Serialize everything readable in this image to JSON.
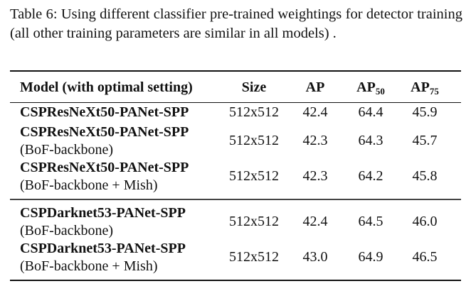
{
  "caption": "Table 6: Using different classifier pre-trained weightings for detector training (all other training parameters are similar in all models) .",
  "headers": {
    "model": "Model (with optimal setting)",
    "size": "Size",
    "ap": "AP",
    "ap50_base": "AP",
    "ap50_sub": "50",
    "ap75_base": "AP",
    "ap75_sub": "75"
  },
  "rows": [
    {
      "model": "CSPResNeXt50-PANet-SPP",
      "variant": "",
      "size": "512x512",
      "ap": "42.4",
      "ap50": "64.4",
      "ap75": "45.9"
    },
    {
      "model": "CSPResNeXt50-PANet-SPP",
      "variant": "(BoF-backbone)",
      "size": "512x512",
      "ap": "42.3",
      "ap50": "64.3",
      "ap75": "45.7"
    },
    {
      "model": "CSPResNeXt50-PANet-SPP",
      "variant": "(BoF-backbone + Mish)",
      "size": "512x512",
      "ap": "42.3",
      "ap50": "64.2",
      "ap75": "45.8"
    },
    {
      "model": "CSPDarknet53-PANet-SPP",
      "variant": "(BoF-backbone)",
      "size": "512x512",
      "ap": "42.4",
      "ap50": "64.5",
      "ap75": "46.0"
    },
    {
      "model": "CSPDarknet53-PANet-SPP",
      "variant": "(BoF-backbone + Mish)",
      "size": "512x512",
      "ap": "43.0",
      "ap50": "64.9",
      "ap75": "46.5"
    }
  ]
}
